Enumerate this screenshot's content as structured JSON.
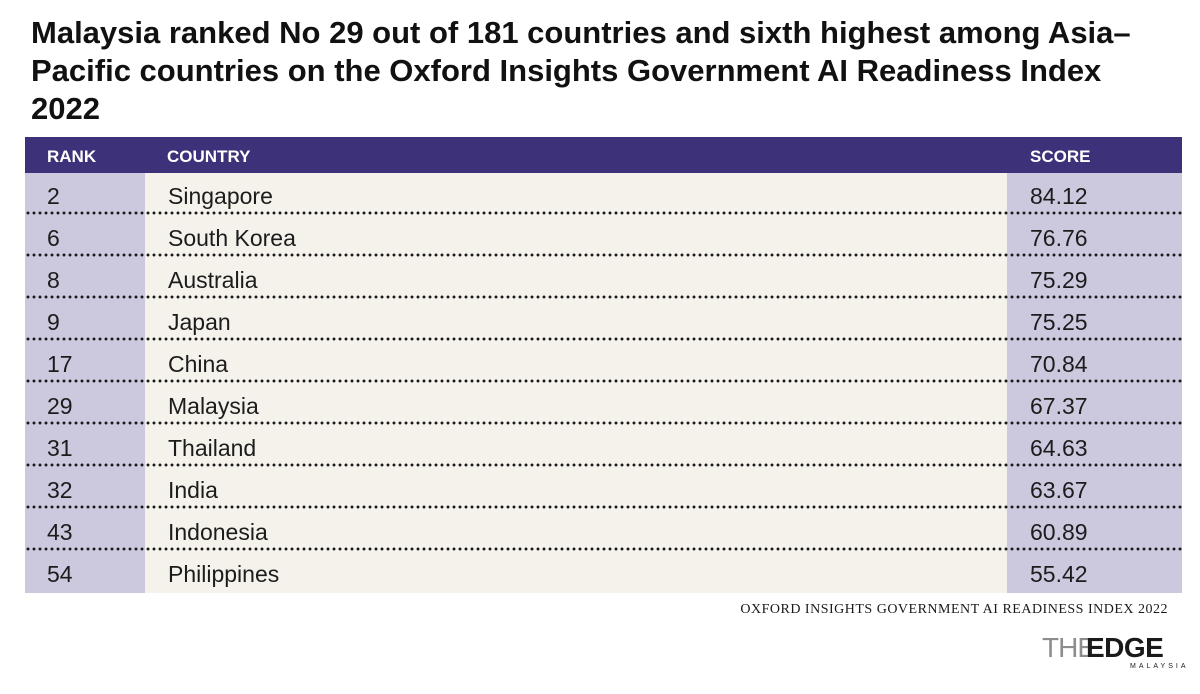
{
  "title": "Malaysia ranked No 29 out of 181 countries and sixth highest among Asia–Pacific countries on the Oxford Insights Government AI Readiness Index 2022",
  "chart_data": {
    "type": "table",
    "columns": [
      "RANK",
      "COUNTRY",
      "SCORE"
    ],
    "rows": [
      {
        "rank": "2",
        "country": "Singapore",
        "score": "84.12"
      },
      {
        "rank": "6",
        "country": "South Korea",
        "score": "76.76"
      },
      {
        "rank": "8",
        "country": "Australia",
        "score": "75.29"
      },
      {
        "rank": "9",
        "country": "Japan",
        "score": "75.25"
      },
      {
        "rank": "17",
        "country": "China",
        "score": "70.84"
      },
      {
        "rank": "29",
        "country": "Malaysia",
        "score": "67.37"
      },
      {
        "rank": "31",
        "country": "Thailand",
        "score": "64.63"
      },
      {
        "rank": "32",
        "country": "India",
        "score": "63.67"
      },
      {
        "rank": "43",
        "country": "Indonesia",
        "score": "60.89"
      },
      {
        "rank": "54",
        "country": "Philippines",
        "score": "55.42"
      }
    ],
    "header_color": "#3d3279",
    "side_column_color": "#ccc8de",
    "middle_column_color": "#f4f2ea"
  },
  "source": "OXFORD INSIGHTS GOVERNMENT AI READINESS INDEX 2022",
  "logo": {
    "the": "THE",
    "edge": "EDGE",
    "sub": "MALAYSIA"
  }
}
